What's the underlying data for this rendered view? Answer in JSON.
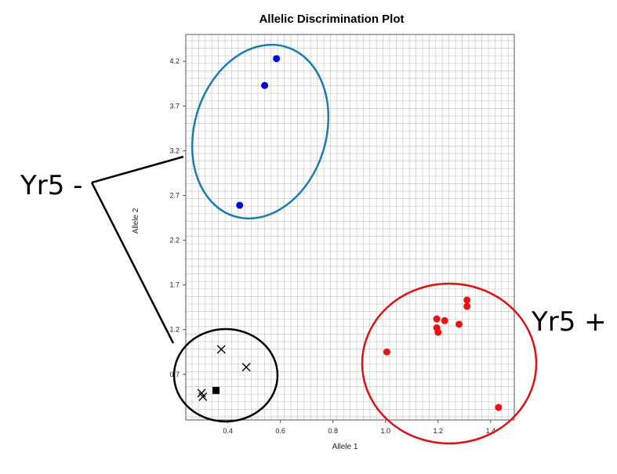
{
  "chart_data": {
    "type": "scatter",
    "title": "Allelic Discrimination Plot",
    "xlabel": "Allele 1",
    "ylabel": "Allele 2",
    "xlim": [
      0.24,
      1.49
    ],
    "ylim": [
      0.19,
      4.5
    ],
    "x_ticks": [
      0.4,
      0.6,
      0.8,
      1.0,
      1.2,
      1.4
    ],
    "x_tick_labels": [
      "0.4",
      "0.6",
      "0.8",
      "1.0",
      "1.2",
      "1.4"
    ],
    "y_ticks": [
      0.7,
      1.2,
      1.7,
      2.2,
      2.7,
      3.2,
      3.7,
      4.2
    ],
    "y_tick_labels": [
      "0.7",
      "1.2",
      "1.7",
      "2.2",
      "2.7",
      "3.2",
      "3.7",
      "4.2"
    ],
    "grid": true,
    "series": [
      {
        "marker": "circle",
        "color": "#0000dd",
        "points": [
          [
            0.585,
            4.23
          ],
          [
            0.54,
            3.93
          ],
          [
            0.445,
            2.59
          ]
        ]
      },
      {
        "marker": "circle",
        "color": "#ee1111",
        "points": [
          [
            1.005,
            0.95
          ],
          [
            1.195,
            1.32
          ],
          [
            1.225,
            1.3
          ],
          [
            1.195,
            1.22
          ],
          [
            1.2,
            1.17
          ],
          [
            1.28,
            1.26
          ],
          [
            1.31,
            1.53
          ],
          [
            1.31,
            1.46
          ],
          [
            1.43,
            0.33
          ]
        ]
      },
      {
        "marker": "x",
        "color": "#000000",
        "points": [
          [
            0.375,
            0.98
          ],
          [
            0.47,
            0.78
          ],
          [
            0.3,
            0.49
          ],
          [
            0.305,
            0.45
          ]
        ]
      },
      {
        "marker": "square",
        "color": "#000000",
        "points": [
          [
            0.355,
            0.52
          ]
        ]
      }
    ],
    "annotations": [
      {
        "text": "Yr5 -",
        "color": "#000000"
      },
      {
        "text": "Yr5 +",
        "color": "#000000"
      }
    ],
    "colors": {
      "blue_cluster": "#1c7bb0",
      "red_cluster": "#dd1111",
      "black_cluster": "#000000",
      "grid": "#c8c8c8"
    }
  }
}
